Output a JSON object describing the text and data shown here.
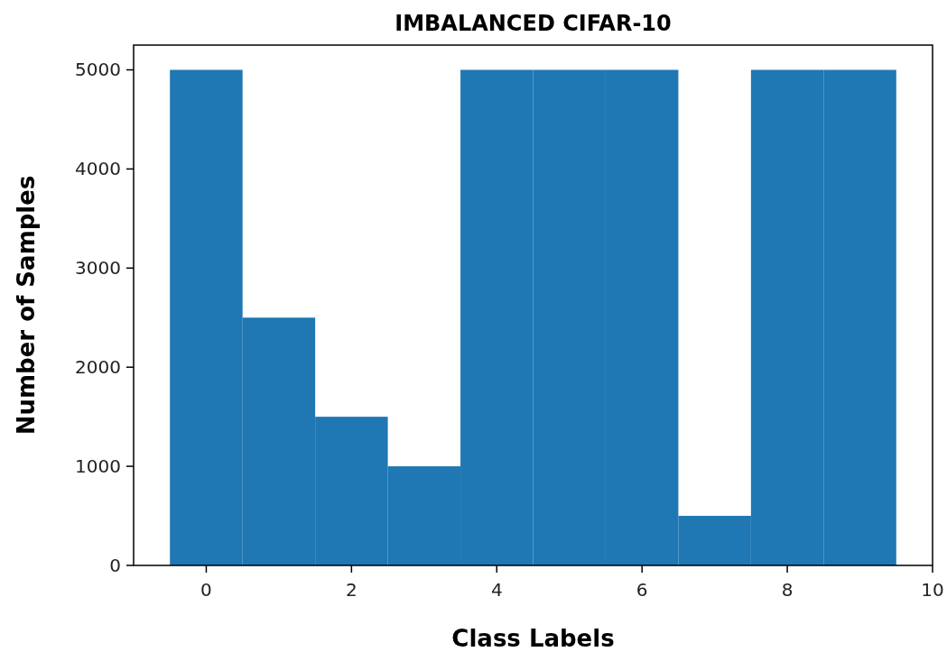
{
  "chart_data": {
    "type": "histogram",
    "title": "IMBALANCED CIFAR-10",
    "xlabel": "Class Labels",
    "ylabel": "Number of Samples",
    "bins": [
      -0.5,
      0.5,
      1.5,
      2.5,
      3.5,
      4.5,
      5.5,
      6.5,
      7.5,
      8.5,
      9.5
    ],
    "values": [
      5000,
      2500,
      1500,
      1000,
      5000,
      5000,
      5000,
      500,
      5000,
      5000
    ],
    "color": "#1f77b4",
    "xlim": [
      -1,
      10
    ],
    "xticks": [
      0,
      2,
      4,
      6,
      8,
      10
    ],
    "ylim": [
      0,
      5250
    ],
    "yticks": [
      0,
      1000,
      2000,
      3000,
      4000,
      5000
    ],
    "grid": false
  }
}
